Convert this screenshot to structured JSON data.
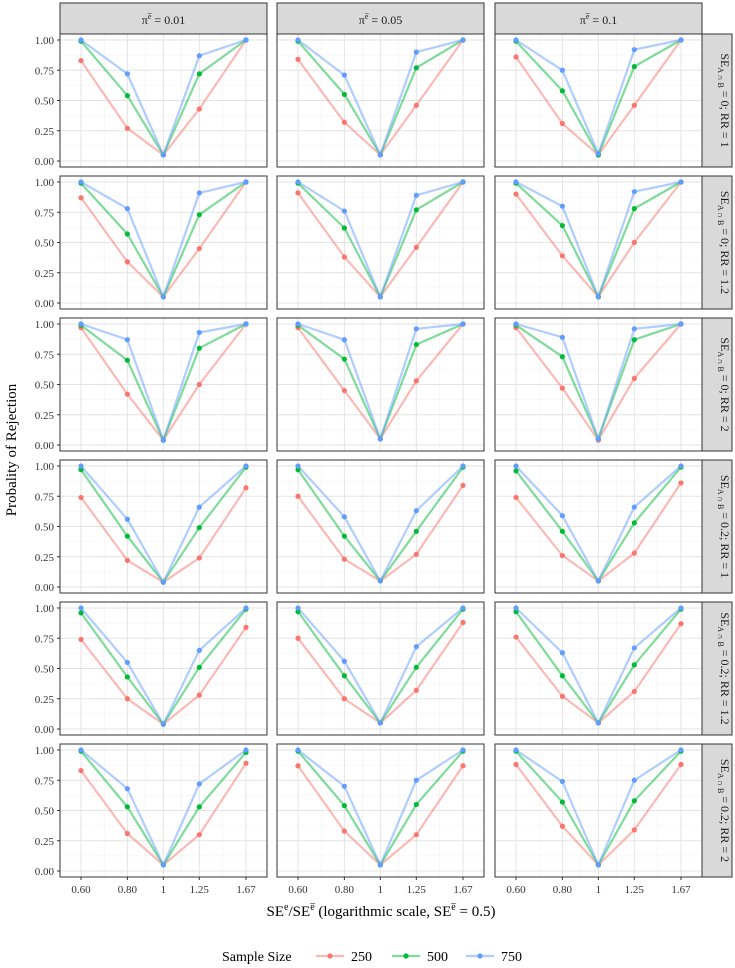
{
  "chart_data": {
    "type": "line",
    "ylabel": "Probality of Rejection",
    "xlabel": {
      "main": "SE",
      "sup1": "e",
      "slash": "/SE",
      "sup2": "e̅",
      "rest": " (logarithmic scale, SE",
      "sup3": "e̅",
      "tail": " = 0.5)"
    },
    "x": [
      0.6,
      0.8,
      1,
      1.25,
      1.67
    ],
    "x_tick_labels": [
      "0.60",
      "0.80",
      "1",
      "1.25",
      "1.67"
    ],
    "x_scale": "log",
    "ylim": [
      0,
      1
    ],
    "y_ticks": [
      0,
      0.25,
      0.5,
      0.75,
      1
    ],
    "y_tick_labels": [
      "0.00",
      "0.25",
      "0.50",
      "0.75",
      "1.00"
    ],
    "grid": true,
    "legend": {
      "title": "Sample Size",
      "position": "bottom",
      "entries": [
        "250",
        "500",
        "750"
      ]
    },
    "colors": {
      "250": "#F8766D",
      "500": "#00BA38",
      "750": "#619CFF"
    },
    "columns": [
      {
        "label": "π = 0.01",
        "symbol": "π",
        "sup": "e̅",
        "rest": " = 0.01"
      },
      {
        "label": "π = 0.05",
        "symbol": "π",
        "sup": "e̅",
        "rest": " = 0.05"
      },
      {
        "label": "π = 0.1",
        "symbol": "π",
        "sup": "e̅",
        "rest": " = 0.1"
      }
    ],
    "rows": [
      {
        "se": "0",
        "rr": "1"
      },
      {
        "se": "0",
        "rr": "1.2"
      },
      {
        "se": "0",
        "rr": "2"
      },
      {
        "se": "0.2",
        "rr": "1"
      },
      {
        "se": "0.2",
        "rr": "1.2"
      },
      {
        "se": "0.2",
        "rr": "2"
      }
    ],
    "row_label_prefix": "SE",
    "row_label_sub": "A ∩ B",
    "panels": [
      [
        {
          "250": [
            0.83,
            0.27,
            0.05,
            0.43,
            1.0
          ],
          "500": [
            0.99,
            0.54,
            0.05,
            0.72,
            1.0
          ],
          "750": [
            1.0,
            0.72,
            0.05,
            0.87,
            1.0
          ]
        },
        {
          "250": [
            0.84,
            0.32,
            0.05,
            0.46,
            1.0
          ],
          "500": [
            0.99,
            0.55,
            0.05,
            0.77,
            1.0
          ],
          "750": [
            1.0,
            0.71,
            0.05,
            0.9,
            1.0
          ]
        },
        {
          "250": [
            0.86,
            0.31,
            0.05,
            0.46,
            1.0
          ],
          "500": [
            0.99,
            0.58,
            0.05,
            0.78,
            1.0
          ],
          "750": [
            1.0,
            0.75,
            0.06,
            0.92,
            1.0
          ]
        }
      ],
      [
        {
          "250": [
            0.87,
            0.34,
            0.05,
            0.45,
            1.0
          ],
          "500": [
            0.99,
            0.57,
            0.05,
            0.73,
            1.0
          ],
          "750": [
            1.0,
            0.78,
            0.05,
            0.91,
            1.0
          ]
        },
        {
          "250": [
            0.91,
            0.38,
            0.05,
            0.46,
            1.0
          ],
          "500": [
            0.99,
            0.62,
            0.05,
            0.77,
            1.0
          ],
          "750": [
            1.0,
            0.76,
            0.05,
            0.89,
            1.0
          ]
        },
        {
          "250": [
            0.9,
            0.39,
            0.05,
            0.5,
            1.0
          ],
          "500": [
            0.99,
            0.64,
            0.05,
            0.78,
            1.0
          ],
          "750": [
            1.0,
            0.8,
            0.05,
            0.92,
            1.0
          ]
        }
      ],
      [
        {
          "250": [
            0.97,
            0.42,
            0.04,
            0.5,
            1.0
          ],
          "500": [
            0.99,
            0.7,
            0.04,
            0.8,
            1.0
          ],
          "750": [
            1.0,
            0.87,
            0.04,
            0.93,
            1.0
          ]
        },
        {
          "250": [
            0.97,
            0.45,
            0.05,
            0.53,
            1.0
          ],
          "500": [
            0.99,
            0.71,
            0.05,
            0.83,
            1.0
          ],
          "750": [
            1.0,
            0.87,
            0.05,
            0.96,
            1.0
          ]
        },
        {
          "250": [
            0.97,
            0.47,
            0.04,
            0.55,
            1.0
          ],
          "500": [
            0.99,
            0.73,
            0.05,
            0.87,
            1.0
          ],
          "750": [
            1.0,
            0.89,
            0.05,
            0.96,
            1.0
          ]
        }
      ],
      [
        {
          "250": [
            0.74,
            0.22,
            0.04,
            0.24,
            0.82
          ],
          "500": [
            0.97,
            0.42,
            0.04,
            0.49,
            0.99
          ],
          "750": [
            1.0,
            0.56,
            0.04,
            0.66,
            1.0
          ]
        },
        {
          "250": [
            0.75,
            0.23,
            0.05,
            0.27,
            0.84
          ],
          "500": [
            0.97,
            0.42,
            0.05,
            0.46,
            0.99
          ],
          "750": [
            1.0,
            0.58,
            0.05,
            0.63,
            1.0
          ]
        },
        {
          "250": [
            0.74,
            0.26,
            0.05,
            0.28,
            0.86
          ],
          "500": [
            0.96,
            0.46,
            0.05,
            0.53,
            0.99
          ],
          "750": [
            1.0,
            0.59,
            0.05,
            0.66,
            1.0
          ]
        }
      ],
      [
        {
          "250": [
            0.74,
            0.25,
            0.04,
            0.28,
            0.84
          ],
          "500": [
            0.96,
            0.43,
            0.04,
            0.51,
            0.99
          ],
          "750": [
            1.0,
            0.55,
            0.04,
            0.65,
            1.0
          ]
        },
        {
          "250": [
            0.75,
            0.25,
            0.05,
            0.32,
            0.88
          ],
          "500": [
            0.97,
            0.44,
            0.05,
            0.51,
            0.99
          ],
          "750": [
            1.0,
            0.56,
            0.05,
            0.68,
            1.0
          ]
        },
        {
          "250": [
            0.76,
            0.27,
            0.05,
            0.31,
            0.87
          ],
          "500": [
            0.97,
            0.44,
            0.05,
            0.53,
            0.99
          ],
          "750": [
            1.0,
            0.63,
            0.05,
            0.67,
            1.0
          ]
        }
      ],
      [
        {
          "250": [
            0.83,
            0.31,
            0.05,
            0.3,
            0.89
          ],
          "500": [
            0.99,
            0.53,
            0.05,
            0.53,
            0.98
          ],
          "750": [
            1.0,
            0.68,
            0.05,
            0.72,
            1.0
          ]
        },
        {
          "250": [
            0.87,
            0.33,
            0.05,
            0.3,
            0.87
          ],
          "500": [
            0.99,
            0.54,
            0.05,
            0.55,
            0.99
          ],
          "750": [
            1.0,
            0.7,
            0.05,
            0.75,
            1.0
          ]
        },
        {
          "250": [
            0.88,
            0.37,
            0.05,
            0.34,
            0.88
          ],
          "500": [
            0.99,
            0.57,
            0.05,
            0.58,
            0.99
          ],
          "750": [
            1.0,
            0.74,
            0.05,
            0.75,
            1.0
          ]
        }
      ]
    ]
  }
}
